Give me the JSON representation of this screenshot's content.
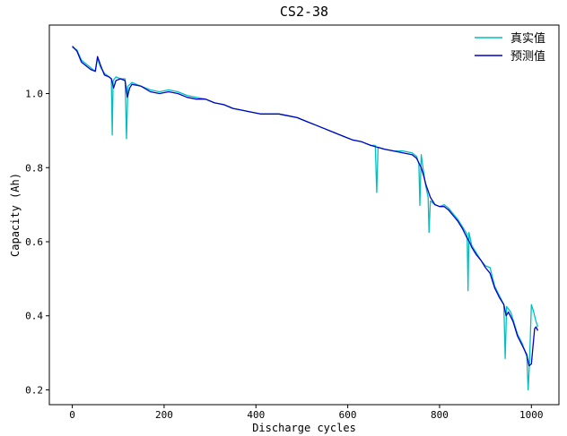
{
  "chart_data": {
    "type": "line",
    "title": "CS2-38",
    "xlabel": "Discharge cycles",
    "ylabel": "Capacity (Ah)",
    "xlim": [
      -50,
      1060
    ],
    "ylim": [
      0.16,
      1.185
    ],
    "xticks": [
      0,
      200,
      400,
      600,
      800,
      1000
    ],
    "yticks": [
      0.2,
      0.4,
      0.6,
      0.8,
      1.0
    ],
    "xtick_labels": [
      "0",
      "200",
      "400",
      "600",
      "800",
      "1000"
    ],
    "ytick_labels": [
      "0.2",
      "0.4",
      "0.6",
      "0.8",
      "1.0"
    ],
    "legend_position": "top-right",
    "grid": false,
    "series": [
      {
        "name": "真实值",
        "color": "#00bfbf",
        "points": [
          [
            0,
            1.125
          ],
          [
            10,
            1.118
          ],
          [
            20,
            1.09
          ],
          [
            30,
            1.08
          ],
          [
            40,
            1.07
          ],
          [
            50,
            1.06
          ],
          [
            55,
            1.095
          ],
          [
            62,
            1.07
          ],
          [
            70,
            1.055
          ],
          [
            80,
            1.045
          ],
          [
            85,
            1.04
          ],
          [
            87,
            0.888
          ],
          [
            89,
            1.035
          ],
          [
            95,
            1.045
          ],
          [
            105,
            1.04
          ],
          [
            115,
            1.04
          ],
          [
            118,
            0.878
          ],
          [
            121,
            1.02
          ],
          [
            130,
            1.03
          ],
          [
            150,
            1.02
          ],
          [
            170,
            1.01
          ],
          [
            190,
            1.005
          ],
          [
            210,
            1.01
          ],
          [
            230,
            1.005
          ],
          [
            250,
            0.995
          ],
          [
            270,
            0.99
          ],
          [
            290,
            0.985
          ],
          [
            310,
            0.975
          ],
          [
            330,
            0.97
          ],
          [
            350,
            0.96
          ],
          [
            370,
            0.955
          ],
          [
            390,
            0.95
          ],
          [
            410,
            0.945
          ],
          [
            430,
            0.945
          ],
          [
            450,
            0.945
          ],
          [
            470,
            0.94
          ],
          [
            490,
            0.935
          ],
          [
            510,
            0.925
          ],
          [
            530,
            0.915
          ],
          [
            550,
            0.905
          ],
          [
            570,
            0.895
          ],
          [
            590,
            0.885
          ],
          [
            610,
            0.875
          ],
          [
            630,
            0.87
          ],
          [
            650,
            0.86
          ],
          [
            660,
            0.86
          ],
          [
            663,
            0.733
          ],
          [
            666,
            0.855
          ],
          [
            680,
            0.85
          ],
          [
            700,
            0.845
          ],
          [
            720,
            0.845
          ],
          [
            740,
            0.84
          ],
          [
            750,
            0.83
          ],
          [
            755,
            0.81
          ],
          [
            757,
            0.698
          ],
          [
            760,
            0.835
          ],
          [
            765,
            0.79
          ],
          [
            770,
            0.75
          ],
          [
            775,
            0.72
          ],
          [
            777,
            0.625
          ],
          [
            780,
            0.71
          ],
          [
            790,
            0.7
          ],
          [
            800,
            0.695
          ],
          [
            810,
            0.7
          ],
          [
            820,
            0.69
          ],
          [
            830,
            0.675
          ],
          [
            840,
            0.66
          ],
          [
            850,
            0.64
          ],
          [
            860,
            0.62
          ],
          [
            862,
            0.468
          ],
          [
            864,
            0.625
          ],
          [
            870,
            0.59
          ],
          [
            880,
            0.57
          ],
          [
            890,
            0.55
          ],
          [
            900,
            0.535
          ],
          [
            910,
            0.53
          ],
          [
            920,
            0.48
          ],
          [
            930,
            0.455
          ],
          [
            940,
            0.43
          ],
          [
            943,
            0.285
          ],
          [
            946,
            0.425
          ],
          [
            955,
            0.41
          ],
          [
            960,
            0.39
          ],
          [
            970,
            0.35
          ],
          [
            980,
            0.325
          ],
          [
            990,
            0.29
          ],
          [
            993,
            0.2
          ],
          [
            996,
            0.28
          ],
          [
            1000,
            0.43
          ],
          [
            1005,
            0.41
          ],
          [
            1010,
            0.385
          ],
          [
            1014,
            0.37
          ]
        ]
      },
      {
        "name": "预测值",
        "color": "#0000cd",
        "points": [
          [
            0,
            1.128
          ],
          [
            10,
            1.115
          ],
          [
            20,
            1.085
          ],
          [
            30,
            1.075
          ],
          [
            40,
            1.065
          ],
          [
            50,
            1.06
          ],
          [
            55,
            1.1
          ],
          [
            62,
            1.075
          ],
          [
            70,
            1.05
          ],
          [
            80,
            1.045
          ],
          [
            85,
            1.04
          ],
          [
            90,
            1.015
          ],
          [
            95,
            1.035
          ],
          [
            105,
            1.04
          ],
          [
            115,
            1.035
          ],
          [
            120,
            0.99
          ],
          [
            125,
            1.015
          ],
          [
            130,
            1.025
          ],
          [
            150,
            1.02
          ],
          [
            170,
            1.005
          ],
          [
            190,
            1.0
          ],
          [
            210,
            1.005
          ],
          [
            230,
            1.0
          ],
          [
            250,
            0.99
          ],
          [
            270,
            0.985
          ],
          [
            290,
            0.985
          ],
          [
            310,
            0.975
          ],
          [
            330,
            0.97
          ],
          [
            350,
            0.96
          ],
          [
            370,
            0.955
          ],
          [
            390,
            0.95
          ],
          [
            410,
            0.945
          ],
          [
            430,
            0.945
          ],
          [
            450,
            0.945
          ],
          [
            470,
            0.94
          ],
          [
            490,
            0.935
          ],
          [
            510,
            0.925
          ],
          [
            530,
            0.915
          ],
          [
            550,
            0.905
          ],
          [
            570,
            0.895
          ],
          [
            590,
            0.885
          ],
          [
            610,
            0.875
          ],
          [
            630,
            0.87
          ],
          [
            650,
            0.86
          ],
          [
            665,
            0.855
          ],
          [
            680,
            0.85
          ],
          [
            700,
            0.845
          ],
          [
            720,
            0.84
          ],
          [
            740,
            0.835
          ],
          [
            750,
            0.825
          ],
          [
            760,
            0.8
          ],
          [
            765,
            0.78
          ],
          [
            770,
            0.755
          ],
          [
            780,
            0.72
          ],
          [
            790,
            0.7
          ],
          [
            800,
            0.695
          ],
          [
            810,
            0.695
          ],
          [
            820,
            0.685
          ],
          [
            830,
            0.67
          ],
          [
            840,
            0.655
          ],
          [
            850,
            0.635
          ],
          [
            860,
            0.61
          ],
          [
            865,
            0.6
          ],
          [
            870,
            0.585
          ],
          [
            880,
            0.565
          ],
          [
            890,
            0.55
          ],
          [
            900,
            0.53
          ],
          [
            910,
            0.515
          ],
          [
            920,
            0.475
          ],
          [
            930,
            0.45
          ],
          [
            940,
            0.43
          ],
          [
            945,
            0.4
          ],
          [
            950,
            0.41
          ],
          [
            960,
            0.385
          ],
          [
            970,
            0.345
          ],
          [
            980,
            0.32
          ],
          [
            990,
            0.295
          ],
          [
            995,
            0.265
          ],
          [
            1000,
            0.27
          ],
          [
            1003,
            0.31
          ],
          [
            1007,
            0.365
          ],
          [
            1010,
            0.37
          ],
          [
            1014,
            0.36
          ]
        ]
      }
    ]
  }
}
